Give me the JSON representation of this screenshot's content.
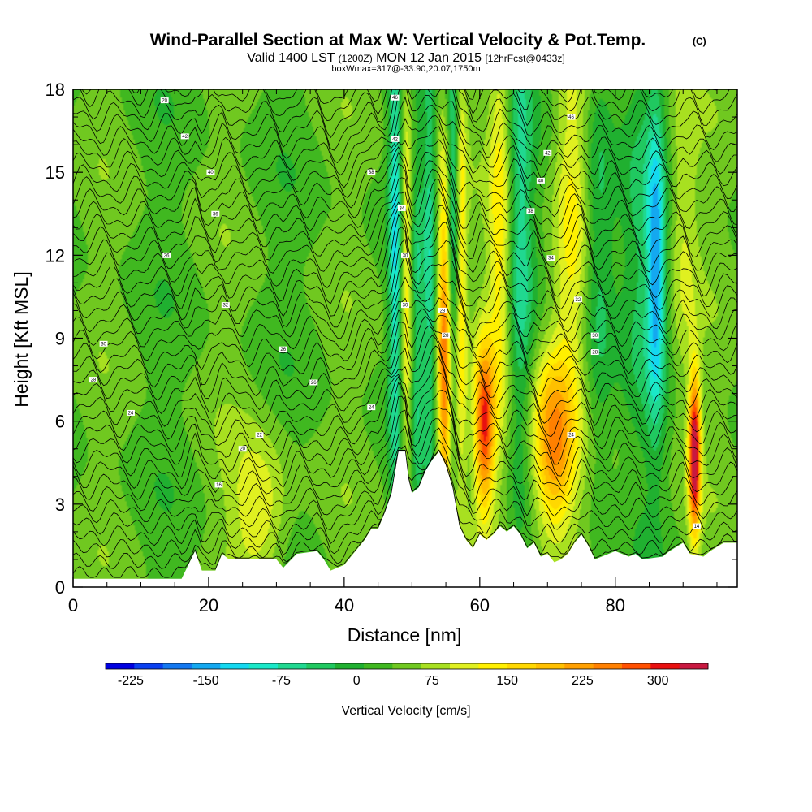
{
  "chart_data": {
    "type": "heatmap",
    "title": "Wind-Parallel Section at Max W: Vertical Velocity & Pot.Temp.",
    "title_mark": "(C)",
    "subtitle_parts": [
      "Valid 1400 LST ",
      "(1200Z)",
      " MON 12 Jan 2015 ",
      "[12hrFcst@0433z]"
    ],
    "box_note": "boxWmax=317@-33.90,20.07,1750m",
    "xlabel": "Distance [nm]",
    "ylabel": "Height [Kft MSL]",
    "xlim": [
      0,
      98
    ],
    "ylim": [
      0,
      18
    ],
    "x_ticks": [
      0,
      20,
      40,
      60,
      80
    ],
    "y_ticks": [
      0,
      3,
      6,
      9,
      12,
      15,
      18
    ],
    "colorbar": {
      "label": "Vertical Velocity [cm/s]",
      "tick_labels": [
        "-225",
        "-150",
        "-75",
        "0",
        "75",
        "150",
        "225",
        "300"
      ],
      "tick_values": [
        -225,
        -150,
        -75,
        0,
        75,
        150,
        225,
        300
      ],
      "range": [
        -250,
        350
      ],
      "colors": [
        "#0000e0",
        "#0a40f0",
        "#1478f0",
        "#14a8f0",
        "#14d8f0",
        "#1ae8c8",
        "#20d890",
        "#20c860",
        "#20b030",
        "#40b820",
        "#70c820",
        "#a8e020",
        "#e0f020",
        "#fff000",
        "#ffd800",
        "#ffc000",
        "#ffa000",
        "#ff8000",
        "#ff5000",
        "#e81010",
        "#c81840"
      ]
    },
    "terrain": [
      [
        0,
        0.3
      ],
      [
        16,
        0.3
      ],
      [
        17,
        0.8
      ],
      [
        18,
        1.3
      ],
      [
        19,
        0.6
      ],
      [
        21,
        0.6
      ],
      [
        22,
        1.2
      ],
      [
        23,
        1.0
      ],
      [
        30,
        1.0
      ],
      [
        31,
        0.7
      ],
      [
        33,
        1.2
      ],
      [
        36,
        1.3
      ],
      [
        37,
        1.0
      ],
      [
        38,
        0.6
      ],
      [
        40,
        0.8
      ],
      [
        41,
        1.1
      ],
      [
        42,
        1.4
      ],
      [
        43,
        1.7
      ],
      [
        44,
        2.1
      ],
      [
        45,
        2.1
      ],
      [
        46,
        2.7
      ],
      [
        47,
        3.4
      ],
      [
        48,
        4.9
      ],
      [
        49,
        4.9
      ],
      [
        49.5,
        3.9
      ],
      [
        50,
        3.4
      ],
      [
        51,
        3.6
      ],
      [
        52,
        4.2
      ],
      [
        53,
        4.6
      ],
      [
        54,
        4.9
      ],
      [
        55,
        4.4
      ],
      [
        56,
        3.6
      ],
      [
        57,
        2.2
      ],
      [
        58,
        1.7
      ],
      [
        59,
        1.4
      ],
      [
        60,
        1.9
      ],
      [
        61,
        1.7
      ],
      [
        62,
        1.9
      ],
      [
        63,
        2.2
      ],
      [
        64,
        2.0
      ],
      [
        65,
        2.2
      ],
      [
        66,
        1.9
      ],
      [
        67,
        1.4
      ],
      [
        68,
        1.6
      ],
      [
        69,
        1.1
      ],
      [
        70,
        1.2
      ],
      [
        71,
        0.9
      ],
      [
        72,
        1.0
      ],
      [
        73,
        1.2
      ],
      [
        74,
        1.6
      ],
      [
        75,
        1.9
      ],
      [
        76,
        1.5
      ],
      [
        77,
        1.0
      ],
      [
        80,
        1.3
      ],
      [
        82,
        1.1
      ],
      [
        83,
        1.2
      ],
      [
        84,
        1.0
      ],
      [
        87,
        1.1
      ],
      [
        88,
        1.3
      ],
      [
        90,
        1.6
      ],
      [
        91,
        1.2
      ],
      [
        93,
        1.1
      ],
      [
        94,
        1.3
      ],
      [
        96,
        1.6
      ],
      [
        98,
        1.6
      ]
    ],
    "updraft_cells": [
      {
        "x": 27.5,
        "y": 2.6,
        "sx": 3.0,
        "sy": 2.0,
        "w": 90
      },
      {
        "x": 47.5,
        "y": 12.5,
        "sx": 0.7,
        "sy": 7.0,
        "w": -130
      },
      {
        "x": 49.2,
        "y": 11.0,
        "sx": 0.6,
        "sy": 5.5,
        "w": 115
      },
      {
        "x": 50.8,
        "y": 9.0,
        "sx": 0.6,
        "sy": 5.0,
        "w": -70
      },
      {
        "x": 52.6,
        "y": 11.5,
        "sx": 0.7,
        "sy": 6.0,
        "w": -95
      },
      {
        "x": 54.8,
        "y": 8.5,
        "sx": 0.7,
        "sy": 5.0,
        "w": 230
      },
      {
        "x": 56.2,
        "y": 14.0,
        "sx": 0.9,
        "sy": 5.5,
        "w": -130
      },
      {
        "x": 57.2,
        "y": 12.0,
        "sx": 0.6,
        "sy": 6.0,
        "w": 140
      },
      {
        "x": 60.7,
        "y": 5.8,
        "sx": 1.0,
        "sy": 2.2,
        "w": 250
      },
      {
        "x": 63.0,
        "y": 12.5,
        "sx": 1.2,
        "sy": 6.0,
        "w": 110
      },
      {
        "x": 66.0,
        "y": 13.0,
        "sx": 1.3,
        "sy": 6.0,
        "w": -90
      },
      {
        "x": 70.8,
        "y": 5.2,
        "sx": 2.2,
        "sy": 2.4,
        "w": 210
      },
      {
        "x": 73.5,
        "y": 13.5,
        "sx": 1.8,
        "sy": 5.0,
        "w": 85
      },
      {
        "x": 77.5,
        "y": 12.0,
        "sx": 1.6,
        "sy": 5.5,
        "w": -80
      },
      {
        "x": 84.0,
        "y": 12.0,
        "sx": 2.5,
        "sy": 5.0,
        "w": -55
      },
      {
        "x": 86.0,
        "y": 11.5,
        "sx": 0.9,
        "sy": 3.8,
        "w": -150
      },
      {
        "x": 91.7,
        "y": 4.8,
        "sx": 0.6,
        "sy": 2.0,
        "w": 330
      },
      {
        "x": 90.0,
        "y": 13.0,
        "sx": 1.5,
        "sy": 5.0,
        "w": 60
      }
    ],
    "isentropes": {
      "count": 40,
      "spacing_kft": 0.46
    },
    "isentrope_labels": [
      {
        "x": 13.5,
        "y": 17.6,
        "text": "20"
      },
      {
        "x": 16.5,
        "y": 16.3,
        "text": "42"
      },
      {
        "x": 20.3,
        "y": 15.0,
        "text": "40"
      },
      {
        "x": 21.0,
        "y": 13.5,
        "text": "36"
      },
      {
        "x": 13.8,
        "y": 12.0,
        "text": "36"
      },
      {
        "x": 22.5,
        "y": 10.2,
        "text": "32"
      },
      {
        "x": 4.5,
        "y": 8.8,
        "text": "30"
      },
      {
        "x": 3.0,
        "y": 7.5,
        "text": "28"
      },
      {
        "x": 8.5,
        "y": 6.3,
        "text": "24"
      },
      {
        "x": 31.0,
        "y": 8.6,
        "text": "26"
      },
      {
        "x": 35.5,
        "y": 7.4,
        "text": "26"
      },
      {
        "x": 44.0,
        "y": 6.5,
        "text": "24"
      },
      {
        "x": 27.5,
        "y": 5.5,
        "text": "22"
      },
      {
        "x": 25.0,
        "y": 5.0,
        "text": "20"
      },
      {
        "x": 21.5,
        "y": 3.7,
        "text": "16"
      },
      {
        "x": 47.5,
        "y": 17.7,
        "text": "46"
      },
      {
        "x": 47.5,
        "y": 16.2,
        "text": "42"
      },
      {
        "x": 44.0,
        "y": 15.0,
        "text": "38"
      },
      {
        "x": 48.5,
        "y": 13.7,
        "text": "34"
      },
      {
        "x": 49.0,
        "y": 12.0,
        "text": "30"
      },
      {
        "x": 49.0,
        "y": 10.2,
        "text": "30"
      },
      {
        "x": 54.5,
        "y": 10.0,
        "text": "28"
      },
      {
        "x": 55.0,
        "y": 9.1,
        "text": "28"
      },
      {
        "x": 73.5,
        "y": 17.0,
        "text": "46"
      },
      {
        "x": 70.0,
        "y": 15.7,
        "text": "42"
      },
      {
        "x": 69.0,
        "y": 14.7,
        "text": "40"
      },
      {
        "x": 67.5,
        "y": 13.6,
        "text": "38"
      },
      {
        "x": 70.5,
        "y": 11.9,
        "text": "34"
      },
      {
        "x": 74.5,
        "y": 10.4,
        "text": "32"
      },
      {
        "x": 77.0,
        "y": 9.1,
        "text": "30"
      },
      {
        "x": 77.0,
        "y": 8.5,
        "text": "28"
      },
      {
        "x": 73.5,
        "y": 5.5,
        "text": "24"
      },
      {
        "x": 92.0,
        "y": 2.2,
        "text": "14"
      }
    ]
  }
}
